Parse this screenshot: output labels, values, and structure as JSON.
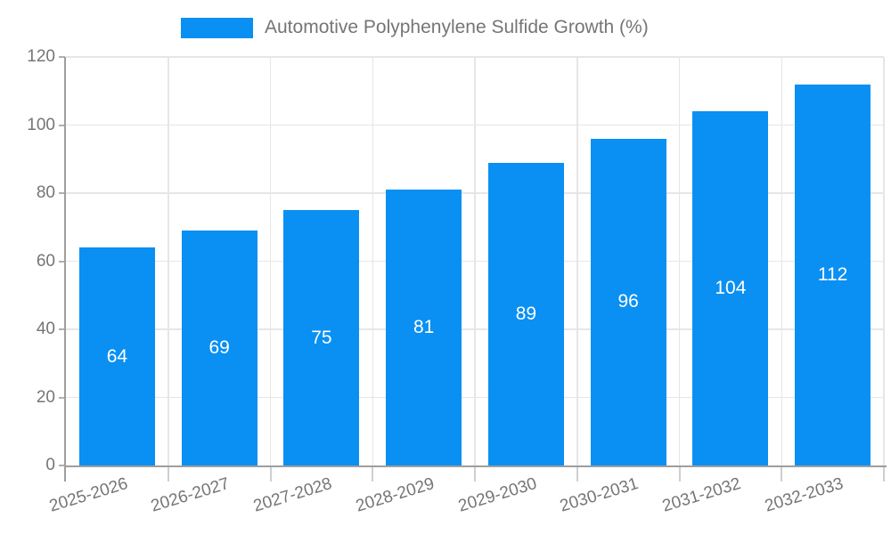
{
  "chart_data": {
    "type": "bar",
    "title": "Automotive Polyphenylene Sulfide Growth (%)",
    "categories": [
      "2025-2026",
      "2026-2027",
      "2027-2028",
      "2028-2029",
      "2029-2030",
      "2030-2031",
      "2031-2032",
      "2032-2033"
    ],
    "values": [
      64,
      69,
      75,
      81,
      89,
      96,
      104,
      112
    ],
    "series": [
      {
        "name": "Automotive Polyphenylene Sulfide Growth (%)",
        "values": [
          64,
          69,
          75,
          81,
          89,
          96,
          104,
          112
        ]
      }
    ],
    "xlabel": "",
    "ylabel": "",
    "ylim": [
      0,
      120
    ],
    "yticks": [
      0,
      20,
      40,
      60,
      80,
      100,
      120
    ],
    "grid": "horizontal and vertical light gridlines",
    "legend_position": "top",
    "value_label_position": "centered inside bar",
    "x_tick_rotation_deg": -17
  },
  "colors": {
    "bar": "#0a90f2",
    "axis_line": "#9e9e9e",
    "gridline": "#e6e6e6",
    "tick_major": "#b0b0b0",
    "tick_minor": "#cfcfcf",
    "tick_label": "#757575",
    "value_label": "#ffffff",
    "background": "#ffffff"
  }
}
